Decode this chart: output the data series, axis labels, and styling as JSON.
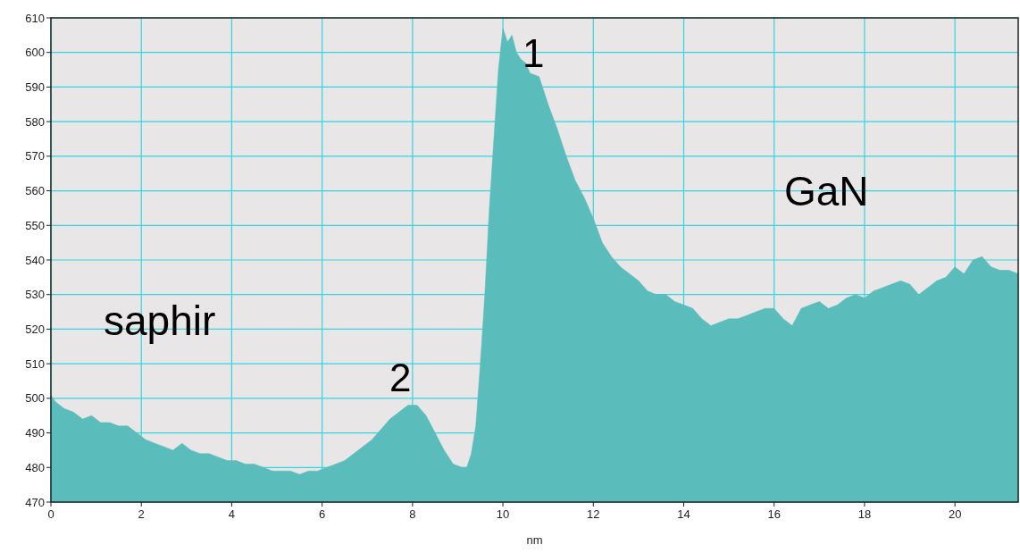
{
  "chart_data": {
    "type": "area",
    "xlabel": "nm",
    "xlim": [
      0,
      21.4
    ],
    "ylim": [
      470,
      610
    ],
    "xticks": [
      0,
      2,
      4,
      6,
      8,
      10,
      12,
      14,
      16,
      18,
      20
    ],
    "yticks": [
      470,
      480,
      490,
      500,
      510,
      520,
      530,
      540,
      550,
      560,
      570,
      580,
      590,
      600,
      610
    ],
    "grid": true,
    "annotations": [
      "saphir",
      "GaN",
      "1",
      "2"
    ],
    "series": [
      {
        "color": "#5bbcbc",
        "x": [
          0,
          0.1,
          0.3,
          0.5,
          0.7,
          0.9,
          1.1,
          1.3,
          1.5,
          1.7,
          1.9,
          2.1,
          2.3,
          2.5,
          2.7,
          2.9,
          3.1,
          3.3,
          3.5,
          3.7,
          3.9,
          4.1,
          4.3,
          4.5,
          4.7,
          4.9,
          5.1,
          5.3,
          5.5,
          5.7,
          5.9,
          6.1,
          6.3,
          6.5,
          6.7,
          6.9,
          7.1,
          7.3,
          7.5,
          7.7,
          7.9,
          8.1,
          8.3,
          8.5,
          8.7,
          8.9,
          9.1,
          9.2,
          9.3,
          9.4,
          9.5,
          9.6,
          9.7,
          9.8,
          9.9,
          10,
          10.1,
          10.2,
          10.3,
          10.4,
          10.5,
          10.6,
          10.8,
          11,
          11.2,
          11.4,
          11.6,
          11.8,
          12,
          12.2,
          12.4,
          12.6,
          12.8,
          13,
          13.2,
          13.4,
          13.6,
          13.8,
          14,
          14.2,
          14.4,
          14.6,
          14.8,
          15,
          15.2,
          15.4,
          15.6,
          15.8,
          16,
          16.2,
          16.4,
          16.6,
          16.8,
          17,
          17.2,
          17.4,
          17.6,
          17.8,
          18,
          18.2,
          18.4,
          18.6,
          18.8,
          19,
          19.2,
          19.4,
          19.6,
          19.8,
          20,
          20.2,
          20.4,
          20.6,
          20.8,
          21,
          21.2,
          21.4
        ],
        "values": [
          501,
          499,
          497,
          496,
          494,
          495,
          493,
          493,
          492,
          492,
          490,
          488,
          487,
          486,
          485,
          487,
          485,
          484,
          484,
          483,
          482,
          482,
          481,
          481,
          480,
          479,
          479,
          479,
          478,
          479,
          479,
          480,
          481,
          482,
          484,
          486,
          488,
          491,
          494,
          496,
          498,
          498,
          495,
          490,
          485,
          481,
          480,
          480,
          484,
          492,
          510,
          530,
          555,
          575,
          595,
          607,
          603,
          605,
          600,
          598,
          597,
          594,
          593,
          585,
          578,
          570,
          563,
          558,
          552,
          545,
          541,
          538,
          536,
          534,
          531,
          530,
          530,
          528,
          527,
          526,
          523,
          521,
          522,
          523,
          523,
          524,
          525,
          526,
          526,
          523,
          521,
          526,
          527,
          528,
          526,
          527,
          529,
          530,
          529,
          531,
          532,
          533,
          534,
          533,
          530,
          532,
          534,
          535,
          538,
          536,
          540,
          541,
          538,
          537,
          537,
          536
        ]
      }
    ]
  }
}
